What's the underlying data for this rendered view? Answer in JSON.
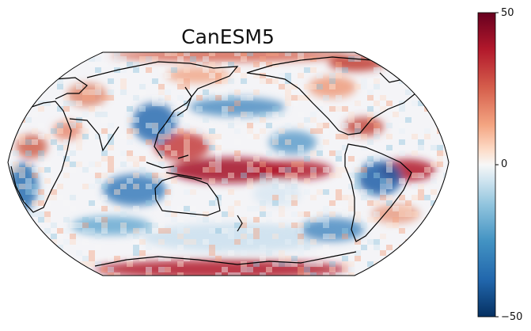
{
  "title": "CanESM5",
  "colorbar": {
    "ticks": [
      "50",
      "0",
      "−50"
    ],
    "min": -50,
    "max": 50,
    "colormap": "RdBu_r",
    "colors": {
      "high": "#67001f",
      "mid": "#f7f7f7",
      "low": "#053061"
    }
  },
  "projection": "robinson",
  "central_longitude": 180,
  "coastline_color": "#000000"
}
